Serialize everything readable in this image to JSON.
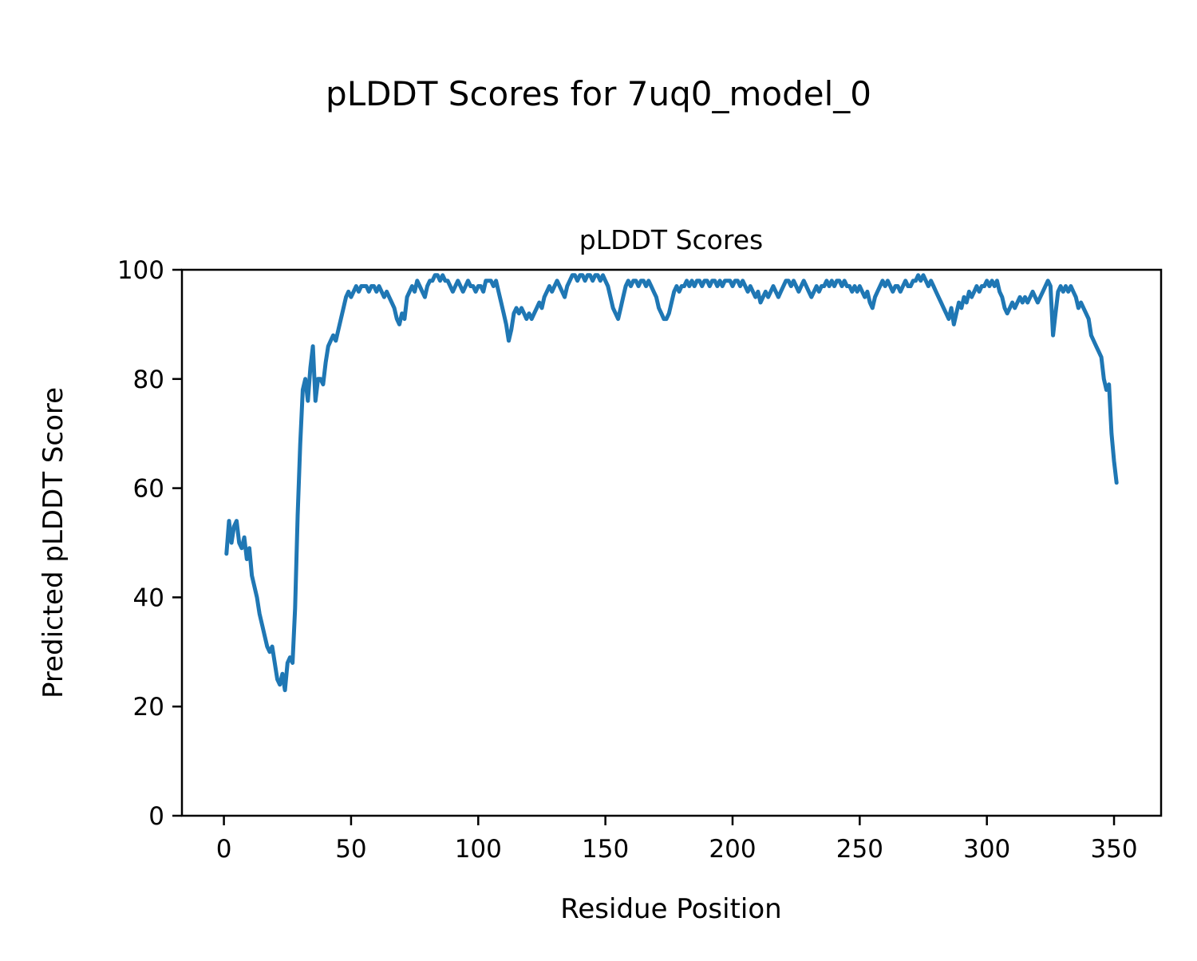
{
  "figure": {
    "title": "pLDDT Scores for 7uq0_model_0"
  },
  "chart_data": {
    "type": "line",
    "figure_title": "pLDDT Scores for 7uq0_model_0",
    "title": "pLDDT Scores",
    "xlabel": "Residue Position",
    "ylabel": "Predicted pLDDT Score",
    "xlim": [
      -16.5,
      368.5
    ],
    "ylim": [
      0,
      100
    ],
    "xticks": [
      0,
      50,
      100,
      150,
      200,
      250,
      300,
      350
    ],
    "yticks": [
      0,
      20,
      40,
      60,
      80,
      100
    ],
    "grid": false,
    "legend": "none",
    "colors": {
      "line": "#1f77b4",
      "spine": "#000000"
    },
    "series": [
      {
        "name": "pLDDT",
        "x_start": 1,
        "values": [
          48,
          54,
          50,
          53,
          54,
          50,
          49,
          51,
          47,
          49,
          44,
          42,
          40,
          37,
          35,
          33,
          31,
          30,
          31,
          28,
          25,
          24,
          26,
          23,
          28,
          29,
          28,
          38,
          55,
          68,
          78,
          80,
          76,
          82,
          86,
          76,
          80,
          80,
          79,
          83,
          86,
          87,
          88,
          87,
          89,
          91,
          93,
          95,
          96,
          95,
          96,
          97,
          96,
          97,
          97,
          97,
          96,
          97,
          97,
          96,
          97,
          96,
          95,
          96,
          95,
          94,
          93,
          91,
          90,
          92,
          91,
          95,
          96,
          97,
          96,
          98,
          97,
          96,
          95,
          97,
          98,
          98,
          99,
          99,
          98,
          99,
          98,
          98,
          97,
          96,
          97,
          98,
          97,
          96,
          97,
          98,
          97,
          97,
          96,
          97,
          97,
          96,
          98,
          98,
          98,
          97,
          98,
          96,
          94,
          92,
          90,
          87,
          89,
          92,
          93,
          92,
          93,
          92,
          91,
          92,
          91,
          92,
          93,
          94,
          93,
          95,
          96,
          97,
          96,
          97,
          98,
          97,
          96,
          95,
          97,
          98,
          99,
          99,
          98,
          99,
          99,
          98,
          99,
          99,
          98,
          99,
          99,
          98,
          99,
          98,
          97,
          95,
          93,
          92,
          91,
          93,
          95,
          97,
          98,
          97,
          98,
          98,
          97,
          98,
          98,
          97,
          98,
          97,
          96,
          95,
          93,
          92,
          91,
          91,
          92,
          94,
          96,
          97,
          96,
          97,
          97,
          98,
          97,
          98,
          97,
          98,
          98,
          97,
          98,
          98,
          97,
          98,
          98,
          97,
          98,
          97,
          98,
          98,
          98,
          97,
          98,
          98,
          97,
          98,
          97,
          96,
          97,
          96,
          95,
          96,
          94,
          95,
          96,
          95,
          96,
          97,
          96,
          95,
          96,
          97,
          98,
          98,
          97,
          98,
          97,
          96,
          97,
          98,
          97,
          96,
          95,
          96,
          97,
          96,
          97,
          97,
          98,
          97,
          98,
          97,
          98,
          98,
          97,
          98,
          97,
          97,
          96,
          97,
          96,
          97,
          96,
          95,
          96,
          94,
          93,
          95,
          96,
          97,
          98,
          97,
          98,
          97,
          96,
          97,
          97,
          96,
          97,
          98,
          97,
          97,
          98,
          98,
          99,
          98,
          99,
          98,
          97,
          98,
          97,
          96,
          95,
          94,
          93,
          92,
          91,
          93,
          90,
          92,
          94,
          93,
          95,
          94,
          96,
          95,
          96,
          97,
          96,
          97,
          97,
          98,
          97,
          98,
          97,
          98,
          96,
          95,
          93,
          92,
          93,
          94,
          93,
          94,
          95,
          94,
          95,
          94,
          95,
          96,
          95,
          94,
          95,
          96,
          97,
          98,
          97,
          88,
          92,
          96,
          97,
          96,
          97,
          96,
          97,
          96,
          95,
          93,
          94,
          93,
          92,
          91,
          88,
          87,
          86,
          85,
          84,
          80,
          78,
          79,
          70,
          65,
          61
        ]
      }
    ]
  }
}
